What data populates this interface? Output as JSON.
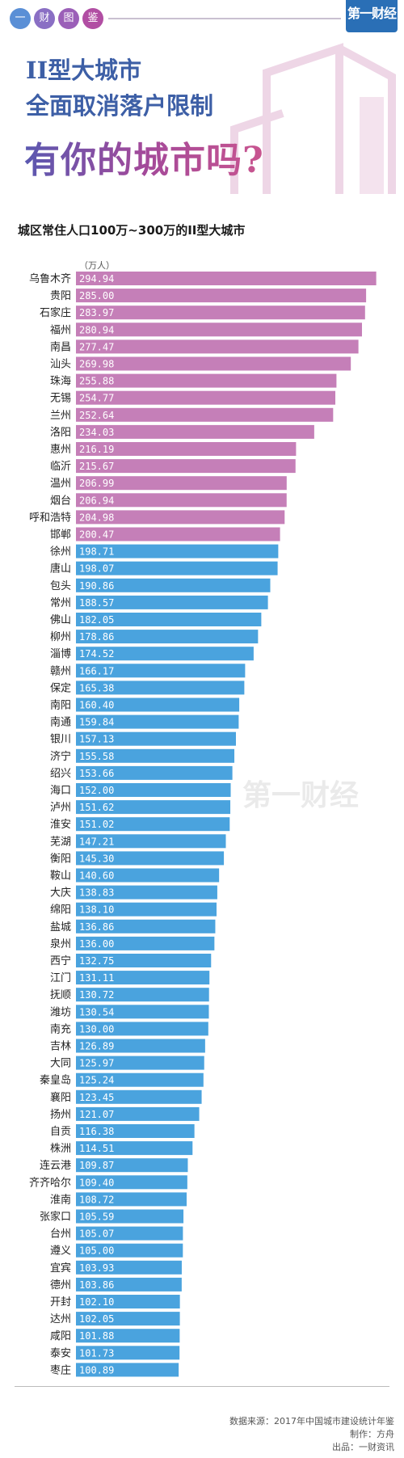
{
  "header": {
    "circles": [
      "一",
      "财",
      "图",
      "鉴"
    ],
    "logo": "第一财经"
  },
  "title": {
    "line1": "II型大城市",
    "line2": "全面取消落户限制",
    "line3": "有你的城市吗?"
  },
  "colors": {
    "purple_bar": "#c57fb8",
    "blue_bar": "#4aa3de",
    "circle_colors": [
      "#5a8fd6",
      "#8a6fc4",
      "#9b5fb8",
      "#b14ea3"
    ]
  },
  "chart_data": {
    "type": "bar",
    "orientation": "horizontal",
    "title": "城区常住人口100万~300万的II型大城市",
    "unit": "（万人）",
    "categories": [
      "乌鲁木齐",
      "贵阳",
      "石家庄",
      "福州",
      "南昌",
      "汕头",
      "珠海",
      "无锡",
      "兰州",
      "洛阳",
      "惠州",
      "临沂",
      "温州",
      "烟台",
      "呼和浩特",
      "邯郸",
      "徐州",
      "唐山",
      "包头",
      "常州",
      "佛山",
      "柳州",
      "淄博",
      "赣州",
      "保定",
      "南阳",
      "南通",
      "银川",
      "济宁",
      "绍兴",
      "海口",
      "泸州",
      "淮安",
      "芜湖",
      "衡阳",
      "鞍山",
      "大庆",
      "绵阳",
      "盐城",
      "泉州",
      "西宁",
      "江门",
      "抚顺",
      "潍坊",
      "南充",
      "吉林",
      "大同",
      "秦皇岛",
      "襄阳",
      "扬州",
      "自贡",
      "株洲",
      "连云港",
      "齐齐哈尔",
      "淮南",
      "张家口",
      "台州",
      "遵义",
      "宜宾",
      "德州",
      "开封",
      "达州",
      "咸阳",
      "泰安",
      "枣庄"
    ],
    "values": [
      294.94,
      285.0,
      283.97,
      280.94,
      277.47,
      269.98,
      255.88,
      254.77,
      252.64,
      234.03,
      216.19,
      215.67,
      206.99,
      206.94,
      204.98,
      200.47,
      198.71,
      198.07,
      190.86,
      188.57,
      182.05,
      178.86,
      174.52,
      166.17,
      165.38,
      160.4,
      159.84,
      157.13,
      155.58,
      153.66,
      152.0,
      151.62,
      151.02,
      147.21,
      145.3,
      140.6,
      138.83,
      138.1,
      136.86,
      136.0,
      132.75,
      131.11,
      130.72,
      130.54,
      130.0,
      126.89,
      125.97,
      125.24,
      123.45,
      121.07,
      116.38,
      114.51,
      109.87,
      109.4,
      108.72,
      105.59,
      105.07,
      105.0,
      103.93,
      103.86,
      102.1,
      102.05,
      101.88,
      101.73,
      100.89
    ],
    "value_labels": [
      "294.94",
      "285.00",
      "283.97",
      "280.94",
      "277.47",
      "269.98",
      "255.88",
      "254.77",
      "252.64",
      "234.03",
      "216.19",
      "215.67",
      "206.99",
      "206.94",
      "204.98",
      "200.47",
      "198.71",
      "198.07",
      "190.86",
      "188.57",
      "182.05",
      "178.86",
      "174.52",
      "166.17",
      "165.38",
      "160.40",
      "159.84",
      "157.13",
      "155.58",
      "153.66",
      "152.00",
      "151.62",
      "151.02",
      "147.21",
      "145.30",
      "140.60",
      "138.83",
      "138.10",
      "136.86",
      "136.00",
      "132.75",
      "131.11",
      "130.72",
      "130.54",
      "130.00",
      "126.89",
      "125.97",
      "125.24",
      "123.45",
      "121.07",
      "116.38",
      "114.51",
      "109.87",
      "109.40",
      "108.72",
      "105.59",
      "105.07",
      "105.00",
      "103.93",
      "103.86",
      "102.10",
      "102.05",
      "101.88",
      "101.73",
      "100.89"
    ],
    "purple_count": 16,
    "xlim": [
      0,
      300
    ]
  },
  "watermark": "第一财经",
  "footer": {
    "source": "数据来源：2017年中国城市建设统计年鉴",
    "author": "制作：方舟",
    "publisher": "出品：一财资讯"
  }
}
